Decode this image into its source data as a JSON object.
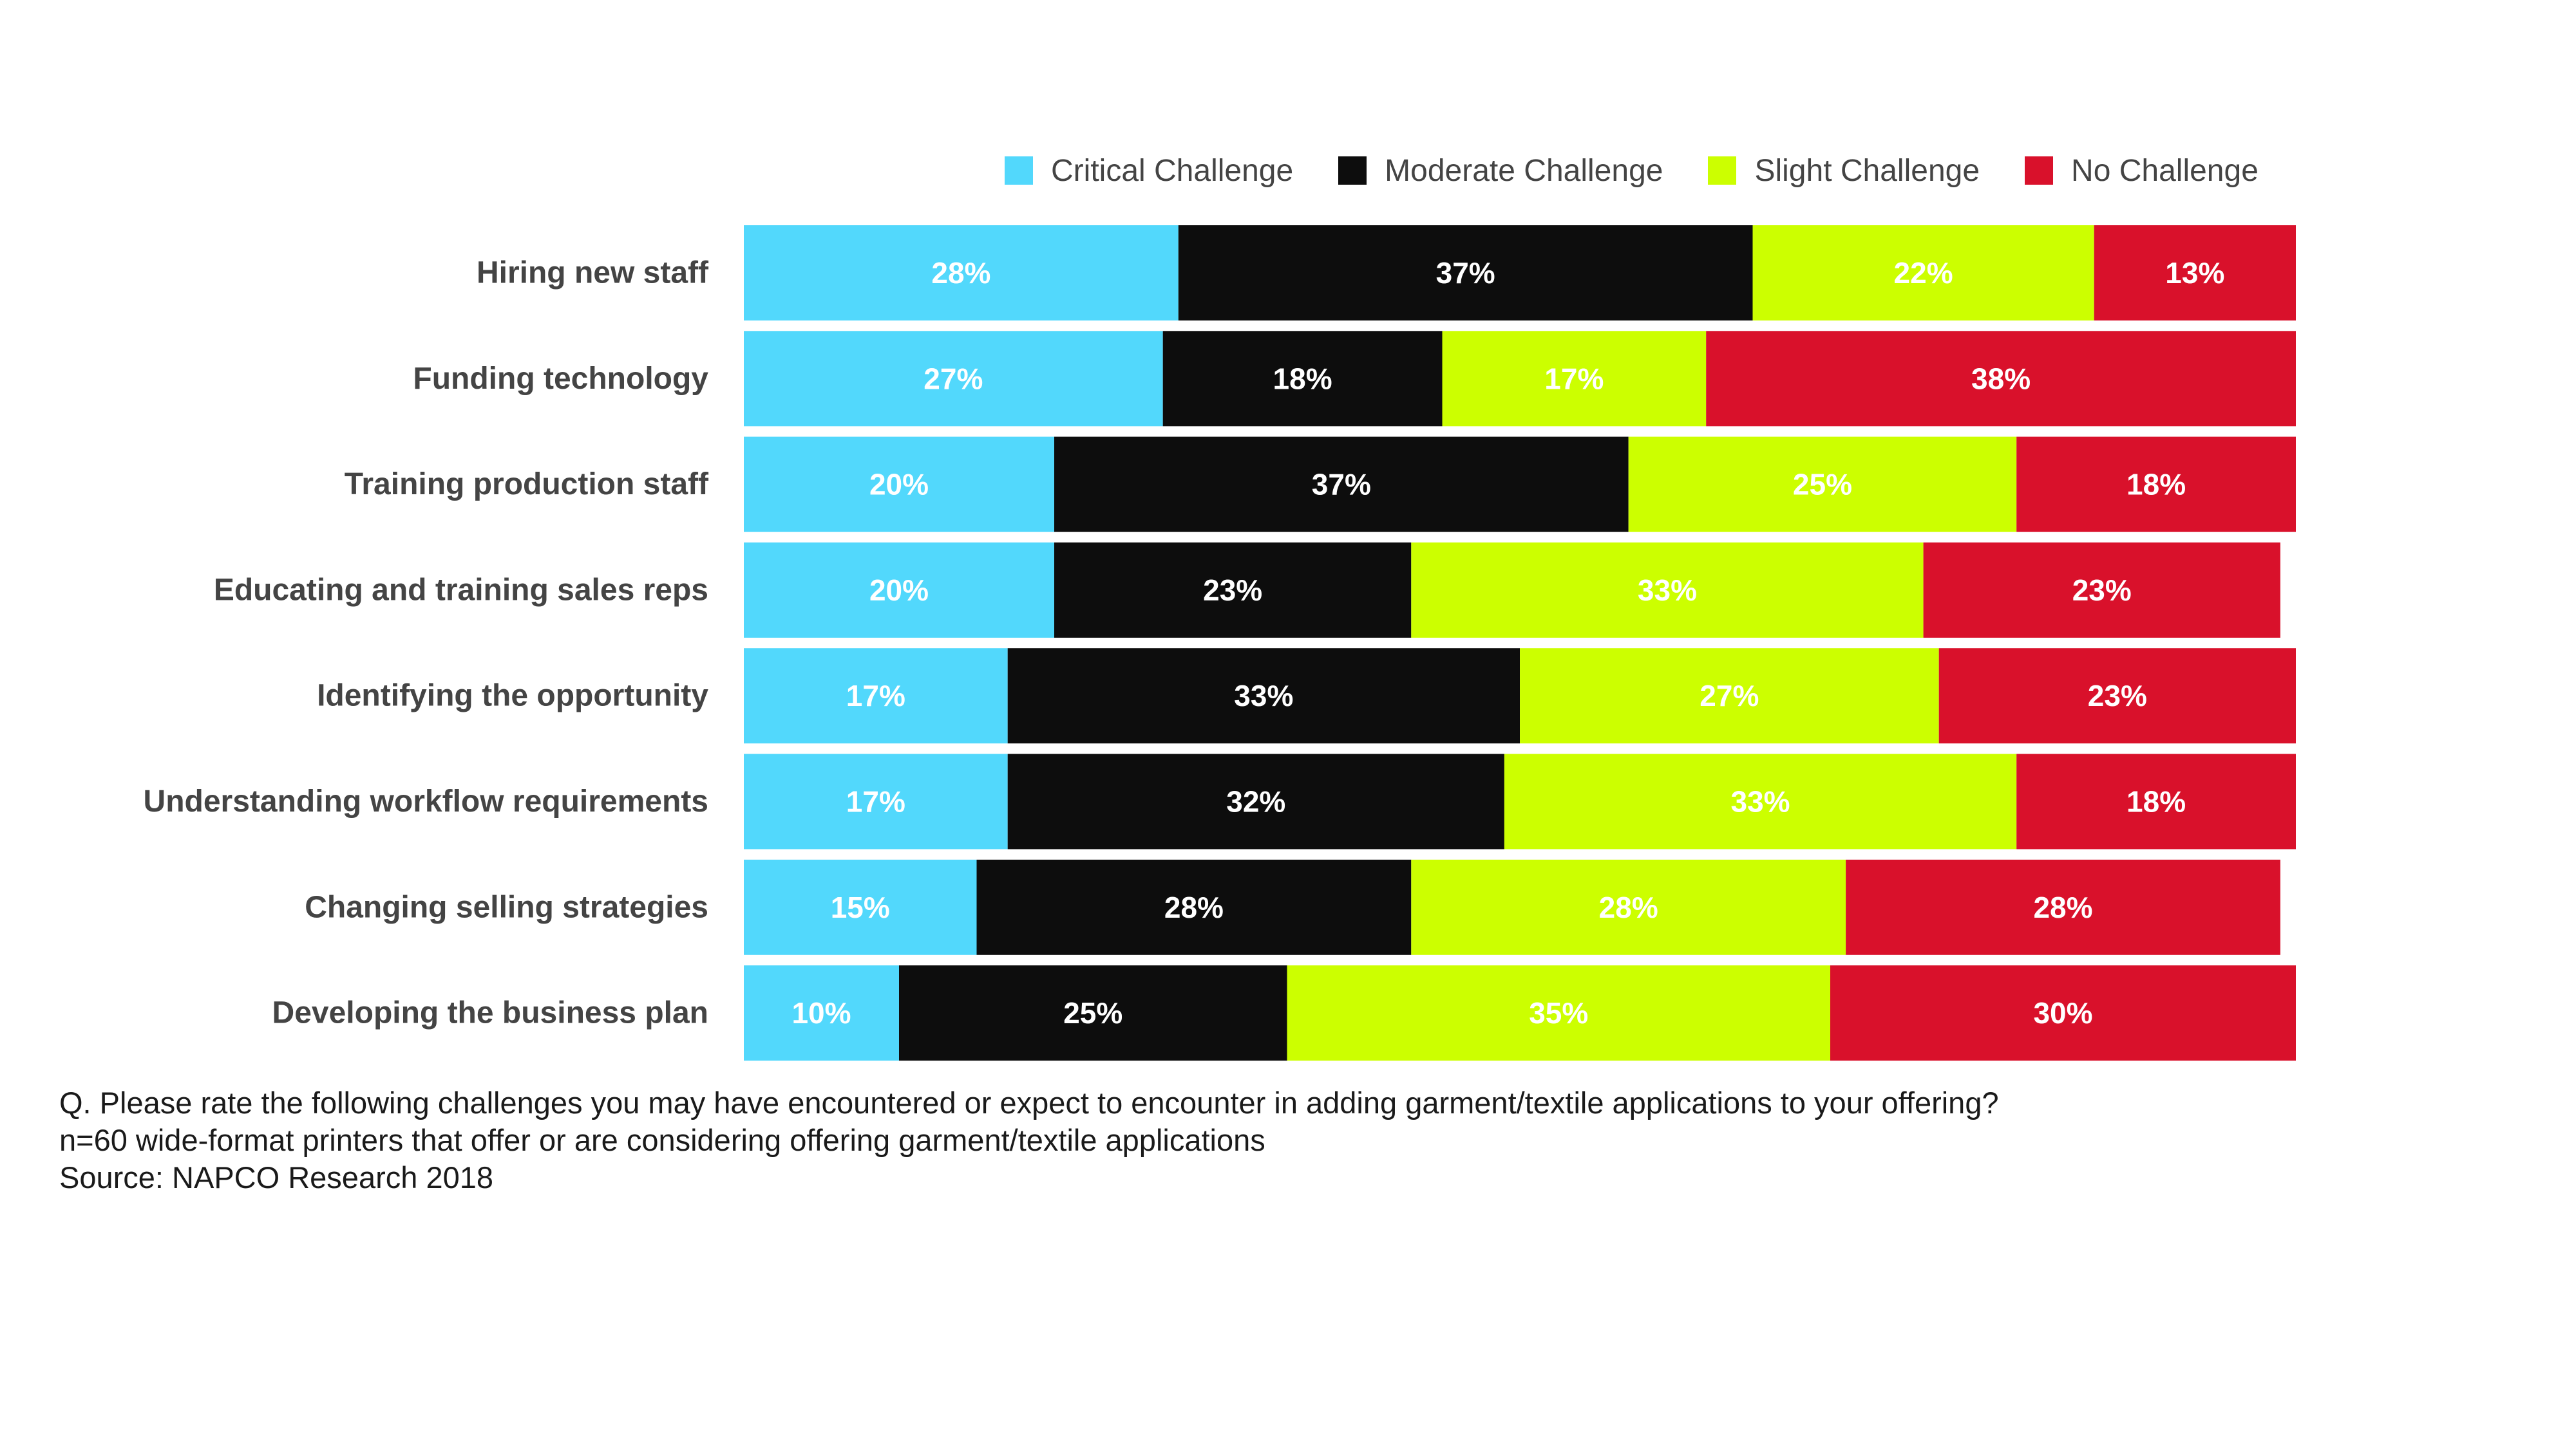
{
  "colors": {
    "critical": "#52d8fc",
    "moderate": "#0d0d0d",
    "slight": "#ccff00",
    "none": "#d9112b",
    "category_text": "#444444",
    "value_text": "#ffffff"
  },
  "legend": [
    {
      "label": "Critical Challenge",
      "color_key": "critical"
    },
    {
      "label": "Moderate Challenge",
      "color_key": "moderate"
    },
    {
      "label": "Slight Challenge",
      "color_key": "slight"
    },
    {
      "label": "No Challenge",
      "color_key": "none"
    }
  ],
  "chart_data": {
    "type": "bar",
    "orientation": "horizontal",
    "stacked": true,
    "categories": [
      "Hiring new staff",
      "Funding technology",
      "Training production staff",
      "Educating and training sales reps",
      "Identifying the opportunity",
      "Understanding workflow requirements",
      "Changing selling strategies",
      "Developing the business plan"
    ],
    "series": [
      {
        "name": "Critical Challenge",
        "color_key": "critical",
        "values": [
          28,
          27,
          20,
          20,
          17,
          17,
          15,
          10
        ],
        "labels": [
          "28%",
          "27%",
          "20%",
          "20%",
          "17%",
          "17%",
          "15%",
          "10%"
        ]
      },
      {
        "name": "Moderate Challenge",
        "color_key": "moderate",
        "values": [
          37,
          18,
          37,
          23,
          33,
          32,
          28,
          25
        ],
        "labels": [
          "37%",
          "18%",
          "37%",
          "23%",
          "33%",
          "32%",
          "28%",
          "25%"
        ]
      },
      {
        "name": "Slight Challenge",
        "color_key": "slight",
        "values": [
          22,
          17,
          25,
          33,
          27,
          33,
          28,
          35
        ],
        "labels": [
          "22%",
          "17%",
          "25%",
          "33%",
          "27%",
          "33%",
          "28%",
          "35%"
        ]
      },
      {
        "name": "No Challenge",
        "color_key": "none",
        "values": [
          13,
          38,
          18,
          23,
          23,
          18,
          28,
          30
        ],
        "labels": [
          "13%",
          "38%",
          "18%",
          "23%",
          "23%",
          "18%",
          "28%",
          "30%"
        ]
      }
    ],
    "legend_position": "top-right",
    "grid": false
  },
  "footnote": {
    "question": "Q. Please rate the following challenges you may have encountered or expect to encounter in adding garment/textile applications to your offering?",
    "sample": "n=60 wide-format printers that offer or are considering offering garment/textile applications",
    "source": "Source: NAPCO Research 2018"
  }
}
